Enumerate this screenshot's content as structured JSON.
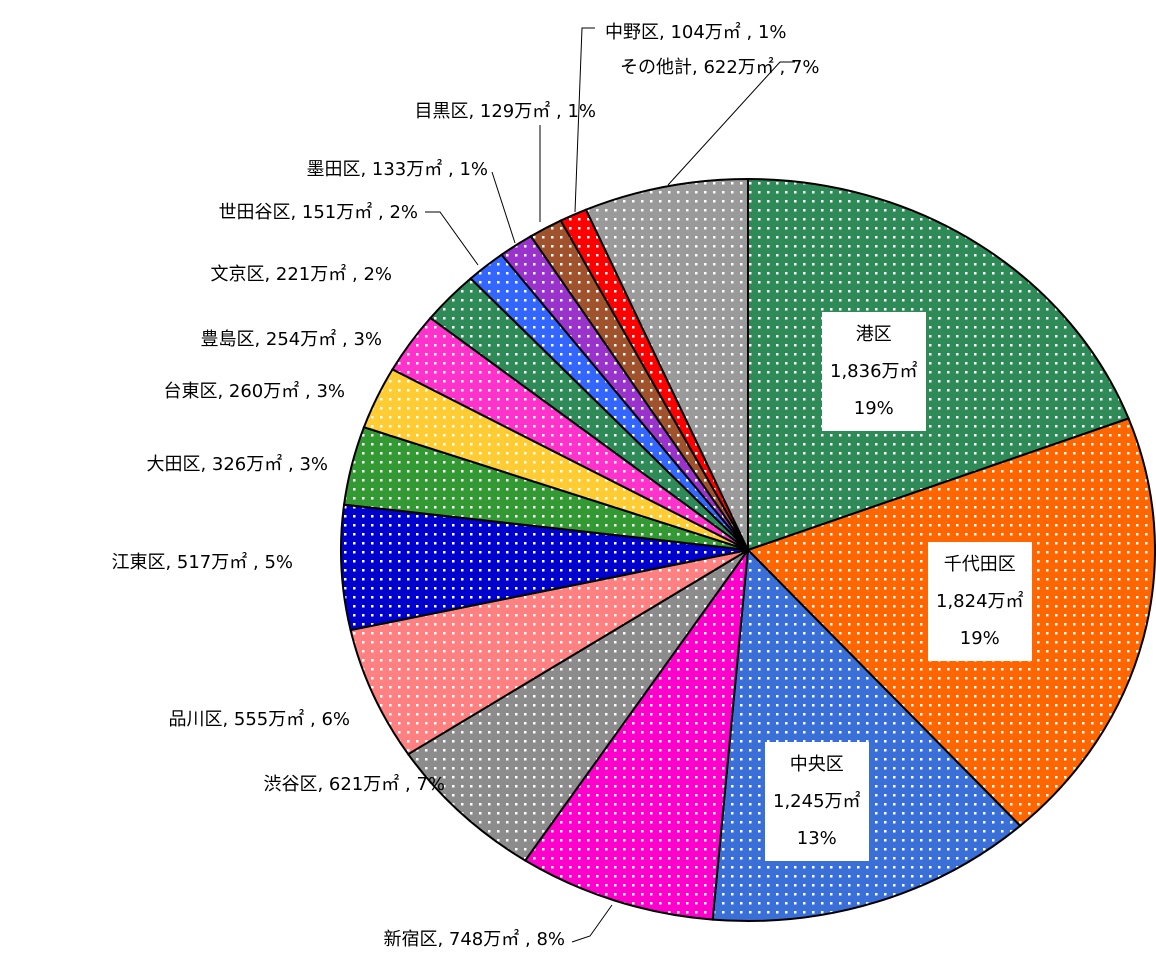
{
  "chart_data": {
    "type": "pie",
    "categories": [
      "港区",
      "千代田区",
      "中央区",
      "新宿区",
      "渋谷区",
      "品川区",
      "江東区",
      "大田区",
      "台東区",
      "豊島区",
      "文京区",
      "世田谷区",
      "墨田区",
      "目黒区",
      "中野区",
      "その他計"
    ],
    "values": [
      1836,
      1824,
      1245,
      748,
      621,
      555,
      517,
      326,
      260,
      254,
      221,
      151,
      133,
      129,
      104,
      622
    ],
    "value_labels": [
      "1,836万㎡",
      "1,824万㎡",
      "1,245万㎡",
      "748万㎡",
      "621万㎡",
      "555万㎡",
      "517万㎡",
      "326万㎡",
      "260万㎡",
      "254万㎡",
      "221万㎡",
      "151万㎡",
      "133万㎡",
      "129万㎡",
      "104万㎡",
      "622万㎡"
    ],
    "percent_labels": [
      "19%",
      "19%",
      "13%",
      "8%",
      "7%",
      "6%",
      "5%",
      "3%",
      "3%",
      "3%",
      "2%",
      "2%",
      "1%",
      "1%",
      "1%",
      "7%"
    ],
    "colors": [
      "#2e8b57",
      "#ff6600",
      "#3a6fd8",
      "#ff00cc",
      "#8c8c8c",
      "#ff8080",
      "#0000cc",
      "#339933",
      "#ffcc33",
      "#ff33cc",
      "#2e8b57",
      "#3366ff",
      "#9933cc",
      "#a0522d",
      "#ff0000",
      "#9a9a9a"
    ]
  }
}
